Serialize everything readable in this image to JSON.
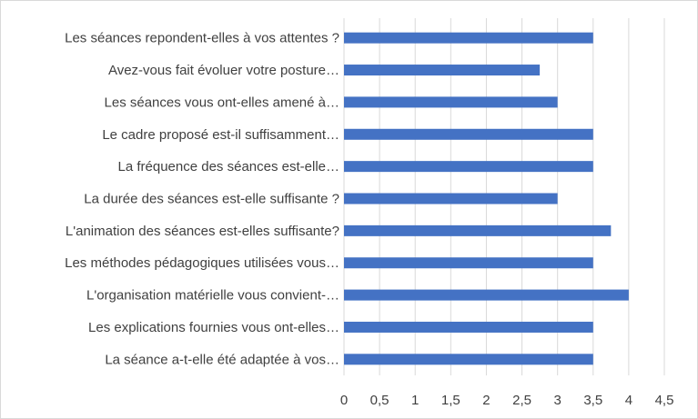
{
  "chart_data": {
    "type": "bar",
    "orientation": "horizontal",
    "title": "",
    "xlabel": "",
    "ylabel": "",
    "categories": [
      "Les séances repondent-elles à vos attentes ?",
      "Avez-vous fait évoluer votre posture…",
      "Les séances vous ont-elles amené à…",
      "Le cadre proposé est-il suffisamment…",
      "La fréquence des séances est-elle…",
      "La durée des séances est-elle suffisante ?",
      "L'animation des séances est-elles suffisante?",
      "Les méthodes pédagogiques utilisées vous…",
      "L'organisation matérielle vous convient-…",
      "Les explications fournies vous ont-elles…",
      "La séance a-t-elle été adaptée à vos…"
    ],
    "values": [
      3.5,
      2.75,
      3,
      3.5,
      3.5,
      3,
      3.75,
      3.5,
      4,
      3.5,
      3.5
    ],
    "xlim": [
      0,
      4.5
    ],
    "ticks": [
      "0",
      "0,5",
      "1",
      "1,5",
      "2",
      "2,5",
      "3",
      "3,5",
      "4",
      "4,5"
    ],
    "tick_values": [
      0,
      0.5,
      1,
      1.5,
      2,
      2.5,
      3,
      3.5,
      4,
      4.5
    ],
    "grid": true,
    "legend": "none",
    "bar_color": "#4472c4",
    "grid_color": "#d9d9d9",
    "text_color": "#404040"
  }
}
